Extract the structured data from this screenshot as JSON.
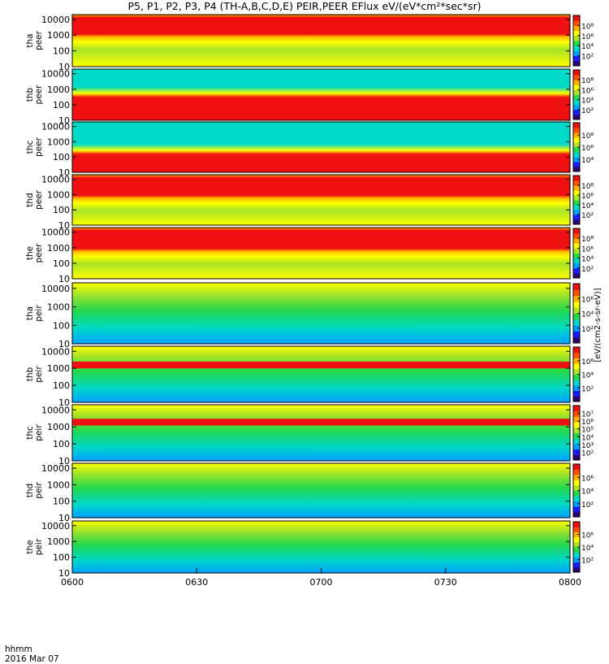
{
  "title": "P5, P1, P2, P3, P4 (TH-A,B,C,D,E) PEIR,PEER EFlux eV/(eV*cm²*sec*sr)",
  "colorbar_unit": "[eV/(cm2-s-sr-eV)]",
  "time_axis": {
    "unit_label": "hhmm",
    "date_label": "2016 Mar 07",
    "ticks": [
      "0600",
      "0630",
      "0700",
      "0730",
      "0800"
    ]
  },
  "colormap": [
    "#2d0075",
    "#1a1aff",
    "#00a0ff",
    "#00d8c8",
    "#25d84c",
    "#a8e428",
    "#ffff00",
    "#ffb000",
    "#ff5000",
    "#ee1010"
  ],
  "chart_data": [
    {
      "type": "heatmap",
      "probe": "tha",
      "species": "peer",
      "ylabel": [
        "tha",
        "peer"
      ],
      "y_scale": "log",
      "ylim": [
        10,
        20000
      ],
      "y_ticks": [
        10,
        100,
        1000,
        10000
      ],
      "cbar_ticks": [
        "10²",
        "10⁴",
        "10⁶",
        "10⁸"
      ],
      "hot_band": [
        800,
        20000
      ]
    },
    {
      "type": "heatmap",
      "probe": "thb",
      "species": "peer",
      "ylabel": [
        "thb",
        "peer"
      ],
      "y_scale": "log",
      "ylim": [
        10,
        20000
      ],
      "y_ticks": [
        10,
        100,
        1000,
        10000
      ],
      "cbar_ticks": [
        "10²",
        "10⁴",
        "10⁶",
        "10⁸"
      ],
      "hot_band": [
        10,
        300
      ]
    },
    {
      "type": "heatmap",
      "probe": "thc",
      "species": "peer",
      "ylabel": [
        "thc",
        "peer"
      ],
      "y_scale": "log",
      "ylim": [
        10,
        20000
      ],
      "y_ticks": [
        10,
        100,
        1000,
        10000
      ],
      "cbar_ticks": [
        "10⁴",
        "10⁶",
        "10⁸"
      ],
      "hot_band": [
        10,
        150
      ]
    },
    {
      "type": "heatmap",
      "probe": "thd",
      "species": "peer",
      "ylabel": [
        "thd",
        "peer"
      ],
      "y_scale": "log",
      "ylim": [
        10,
        20000
      ],
      "y_ticks": [
        10,
        100,
        1000,
        10000
      ],
      "cbar_ticks": [
        "10²",
        "10⁴",
        "10⁶",
        "10⁸"
      ],
      "hot_band": [
        600,
        20000
      ]
    },
    {
      "type": "heatmap",
      "probe": "the",
      "species": "peer",
      "ylabel": [
        "the",
        "peer"
      ],
      "y_scale": "log",
      "ylim": [
        10,
        20000
      ],
      "y_ticks": [
        10,
        100,
        1000,
        10000
      ],
      "cbar_ticks": [
        "10²",
        "10⁴",
        "10⁶",
        "10⁸"
      ],
      "hot_band": [
        600,
        20000
      ]
    },
    {
      "type": "heatmap",
      "probe": "tha",
      "species": "peir",
      "ylabel": [
        "tha",
        "peir"
      ],
      "y_scale": "log",
      "ylim": [
        10,
        20000
      ],
      "y_ticks": [
        10,
        100,
        1000,
        10000
      ],
      "cbar_ticks": [
        "10²",
        "10⁴",
        "10⁶"
      ],
      "hot_band": null
    },
    {
      "type": "heatmap",
      "probe": "thb",
      "species": "peir",
      "ylabel": [
        "thb",
        "peir"
      ],
      "y_scale": "log",
      "ylim": [
        10,
        20000
      ],
      "y_ticks": [
        10,
        100,
        1000,
        10000
      ],
      "cbar_ticks": [
        "10²",
        "10⁴",
        "10⁶"
      ],
      "hot_band": [
        1000,
        2500
      ]
    },
    {
      "type": "heatmap",
      "probe": "thc",
      "species": "peir",
      "ylabel": [
        "thc",
        "peir"
      ],
      "y_scale": "log",
      "ylim": [
        10,
        20000
      ],
      "y_ticks": [
        10,
        100,
        1000,
        10000
      ],
      "cbar_ticks": [
        "10²",
        "10³",
        "10⁴",
        "10⁵",
        "10⁶",
        "10⁷"
      ],
      "hot_band": [
        1200,
        3000
      ]
    },
    {
      "type": "heatmap",
      "probe": "thd",
      "species": "peir",
      "ylabel": [
        "thd",
        "peir"
      ],
      "y_scale": "log",
      "ylim": [
        10,
        20000
      ],
      "y_ticks": [
        10,
        100,
        1000,
        10000
      ],
      "cbar_ticks": [
        "10²",
        "10⁴",
        "10⁶"
      ],
      "hot_band": null
    },
    {
      "type": "heatmap",
      "probe": "the",
      "species": "peir",
      "ylabel": [
        "the",
        "peir"
      ],
      "y_scale": "log",
      "ylim": [
        10,
        20000
      ],
      "y_ticks": [
        10,
        100,
        1000,
        10000
      ],
      "cbar_ticks": [
        "10²",
        "10⁴",
        "10⁶"
      ],
      "hot_band": null
    }
  ]
}
